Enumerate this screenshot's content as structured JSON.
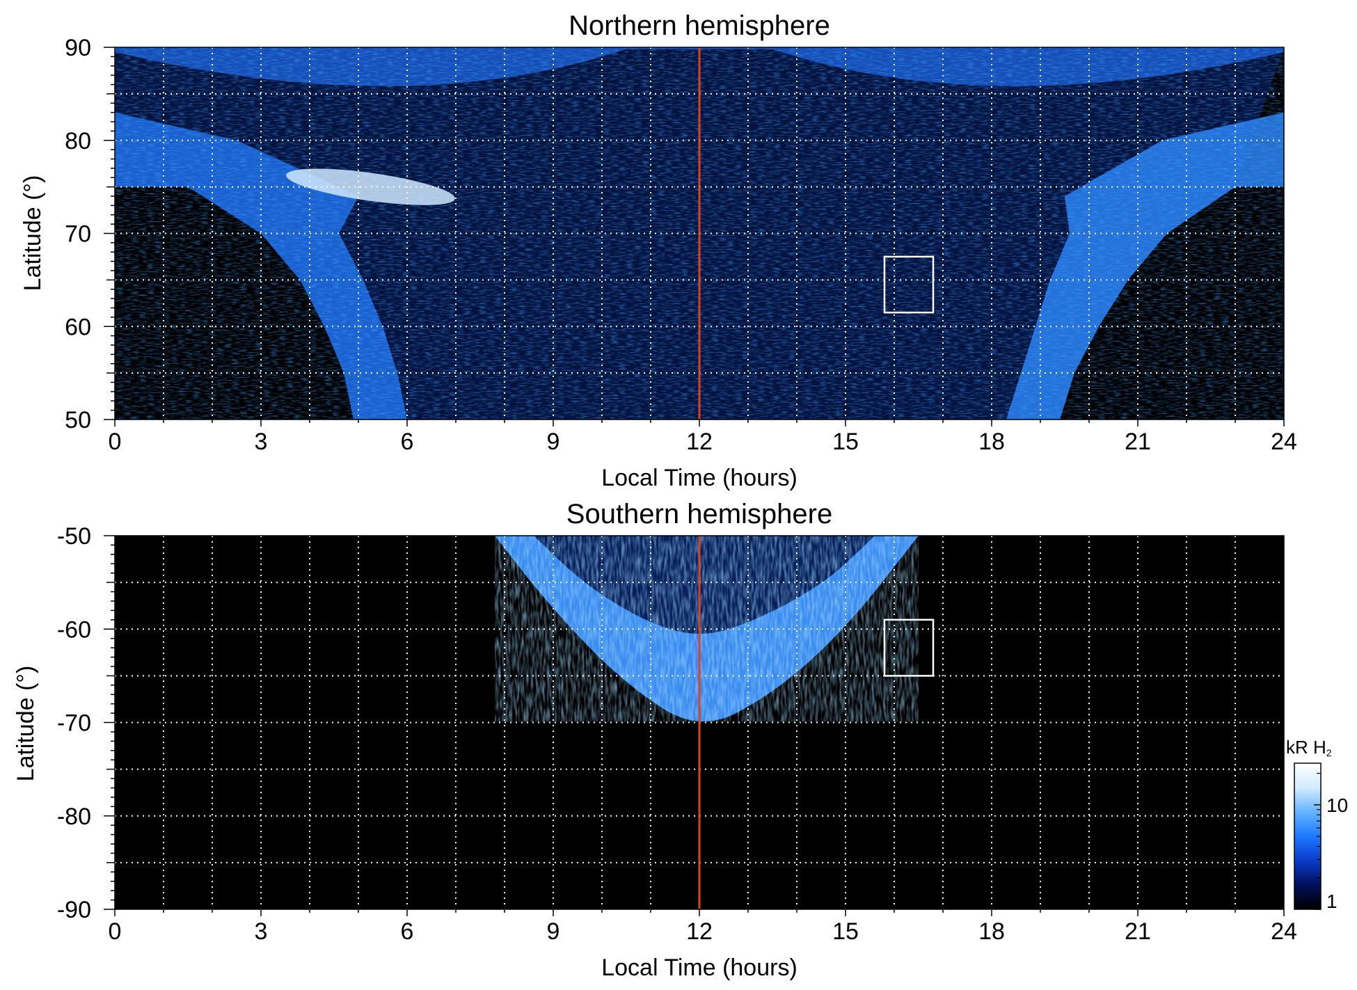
{
  "chart_data": [
    {
      "type": "heatmap",
      "title": "Northern hemisphere",
      "xlabel": "Local Time (hours)",
      "ylabel": "Latitude (°)",
      "xlim": [
        0,
        24
      ],
      "ylim": [
        50,
        90
      ],
      "x_ticks": [
        "0",
        "3",
        "6",
        "9",
        "12",
        "15",
        "18",
        "21",
        "24"
      ],
      "y_ticks": [
        "50",
        "60",
        "70",
        "80",
        "90"
      ],
      "grid": true,
      "reference_line": {
        "x": 12,
        "color": "#e0401c"
      },
      "box": {
        "x": [
          15.8,
          16.8
        ],
        "y": [
          61.5,
          67.5
        ],
        "color": "#ffffff"
      },
      "emission": {
        "auroral_oval_poleward_edge_lat": [
          [
            0,
            75
          ],
          [
            3,
            74
          ],
          [
            6,
            73
          ],
          [
            9,
            72
          ],
          [
            12,
            72
          ],
          [
            15,
            72
          ],
          [
            18,
            73
          ],
          [
            21,
            74
          ],
          [
            24,
            75
          ]
        ],
        "dawn_band_equatorward_lt": [
          [
            75,
            1.5
          ],
          [
            70,
            3.0
          ],
          [
            65,
            3.8
          ],
          [
            60,
            4.3
          ],
          [
            55,
            4.7
          ],
          [
            50,
            4.9
          ]
        ],
        "dusk_band_equatorward_lt": [
          [
            75,
            23.0
          ],
          [
            70,
            21.6
          ],
          [
            65,
            20.8
          ],
          [
            60,
            20.2
          ],
          [
            55,
            19.7
          ],
          [
            50,
            19.4
          ]
        ],
        "dawn_bright_arc": {
          "lt": [
            3.5,
            7.0
          ],
          "lat": [
            73.5,
            76.5
          ],
          "level_kR": 20
        }
      }
    },
    {
      "type": "heatmap",
      "title": "Southern hemisphere",
      "xlabel": "Local Time (hours)",
      "ylabel": "Latitude (°)",
      "xlim": [
        0,
        24
      ],
      "ylim": [
        -90,
        -50
      ],
      "x_ticks": [
        "0",
        "3",
        "6",
        "9",
        "12",
        "15",
        "18",
        "21",
        "24"
      ],
      "y_ticks": [
        "-50",
        "-60",
        "-70",
        "-80",
        "-90"
      ],
      "grid": true,
      "reference_line": {
        "x": 12,
        "color": "#e0401c"
      },
      "box": {
        "x": [
          15.8,
          16.8
        ],
        "y": [
          -65.0,
          -59.0
        ],
        "color": "#ffffff"
      },
      "emission": {
        "outer_edge": [
          [
            7.8,
            -50
          ],
          [
            9,
            -58
          ],
          [
            10.5,
            -66
          ],
          [
            12,
            -71
          ],
          [
            13.5,
            -67
          ],
          [
            15,
            -60
          ],
          [
            16.5,
            -50
          ]
        ],
        "inner_edge": [
          [
            8.6,
            -50
          ],
          [
            9.6,
            -55
          ],
          [
            10.8,
            -59
          ],
          [
            12,
            -61
          ],
          [
            13.2,
            -59
          ],
          [
            14.6,
            -55
          ],
          [
            15.6,
            -50
          ]
        ]
      }
    }
  ],
  "colorbar": {
    "label_main": "kR H",
    "label_sub": "2",
    "scale": "log",
    "range": [
      1,
      25
    ],
    "ticks": [
      "10",
      "1"
    ],
    "colors": [
      "#000000",
      "#00105a",
      "#0a3cc8",
      "#1e78ff",
      "#64b4ff",
      "#d2ecff",
      "#ffffff"
    ]
  }
}
